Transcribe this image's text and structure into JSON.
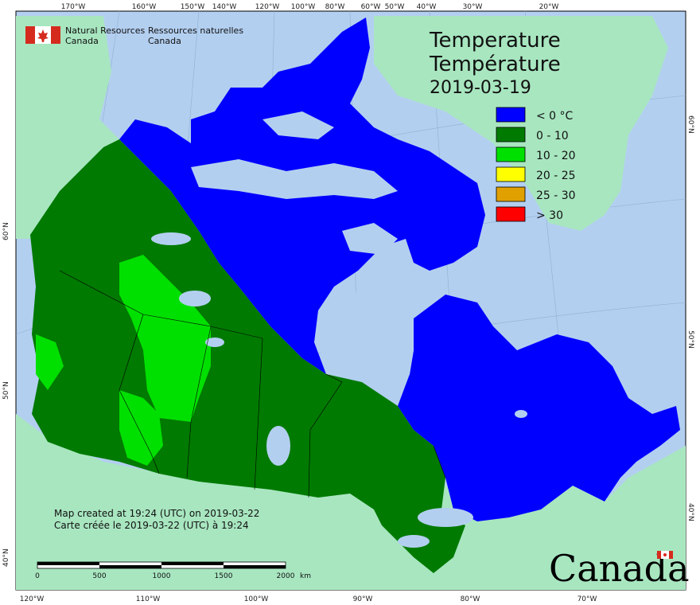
{
  "title_en": "Temperature",
  "title_fr": "Température",
  "date": "2019-03-19",
  "agency": {
    "en_line1": "Natural Resources",
    "en_line2": "Canada",
    "fr_line1": "Ressources naturelles",
    "fr_line2": "Canada"
  },
  "legend": [
    {
      "label": "< 0 °C",
      "color": "#0000ff"
    },
    {
      "label": "0 - 10",
      "color": "#007a00"
    },
    {
      "label": "10 - 20",
      "color": "#00e000"
    },
    {
      "label": "20 - 25",
      "color": "#ffff00"
    },
    {
      "label": "25 - 30",
      "color": "#e0a000"
    },
    {
      "label": "> 30",
      "color": "#ff0000"
    }
  ],
  "credits": {
    "en": "Map created at 19:24 (UTC) on 2019-03-22",
    "fr": "Carte créée le 2019-03-22 (UTC) à 19:24"
  },
  "scale": {
    "labels": [
      "0",
      "500",
      "1000",
      "1500",
      "2000"
    ],
    "unit": "km"
  },
  "axis_top": [
    "170°W",
    "160°W",
    "150°W",
    "140°W",
    "120°W",
    "100°W",
    "80°W",
    "60°W",
    "50°W",
    "40°W",
    "30°W",
    "20°W"
  ],
  "axis_bottom": [
    "120°W",
    "110°W",
    "100°W",
    "90°W",
    "80°W",
    "70°W"
  ],
  "axis_left": [
    "60°N",
    "50°N",
    "40°N"
  ],
  "axis_right": [
    "60°N",
    "50°N",
    "40°N"
  ],
  "wordmark": "Canada",
  "colors": {
    "ocean": "#b3cff0",
    "foreign_land": "#a8e6c0",
    "lake": "#b3cff0",
    "border": "#000000"
  }
}
